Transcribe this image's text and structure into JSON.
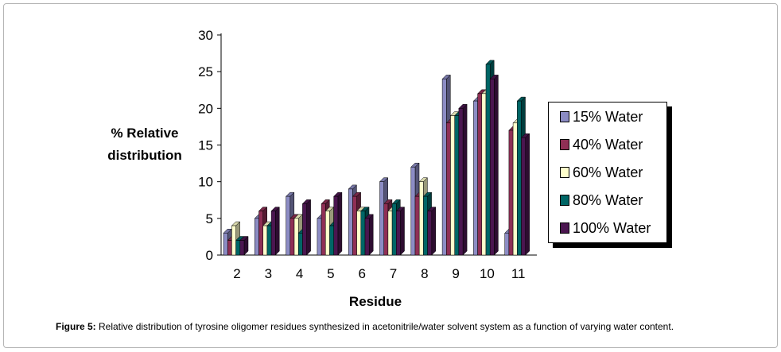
{
  "chart_data": {
    "type": "bar",
    "xlabel": "Residue",
    "ylabel": "% Relative distribution",
    "ylim": [
      0,
      30
    ],
    "yticks": [
      0,
      5,
      10,
      15,
      20,
      25,
      30
    ],
    "categories": [
      "2",
      "3",
      "4",
      "5",
      "6",
      "7",
      "8",
      "9",
      "10",
      "11"
    ],
    "series": [
      {
        "name": "15% Water",
        "color": "#8c8cc4",
        "values": [
          3,
          5,
          8,
          5,
          9,
          10,
          12,
          24,
          21,
          3
        ]
      },
      {
        "name": "40% Water",
        "color": "#8f2f55",
        "values": [
          2,
          6,
          5,
          7,
          8,
          7,
          8,
          18,
          22,
          17
        ]
      },
      {
        "name": "60% Water",
        "color": "#ffffcc",
        "values": [
          4,
          4,
          5,
          6,
          6,
          6,
          10,
          19,
          22,
          18
        ]
      },
      {
        "name": "80% Water",
        "color": "#006666",
        "values": [
          2,
          4,
          3,
          4,
          6,
          7,
          8,
          19,
          26,
          21
        ]
      },
      {
        "name": "100% Water",
        "color": "#4b1650",
        "values": [
          2,
          6,
          7,
          8,
          5,
          6,
          6,
          20,
          24,
          16
        ]
      }
    ],
    "legend_position": "right"
  },
  "caption": {
    "label": "Figure 5:",
    "text": " Relative distribution of tyrosine oligomer residues synthesized in acetonitrile/water solvent system as a function of varying water content."
  }
}
